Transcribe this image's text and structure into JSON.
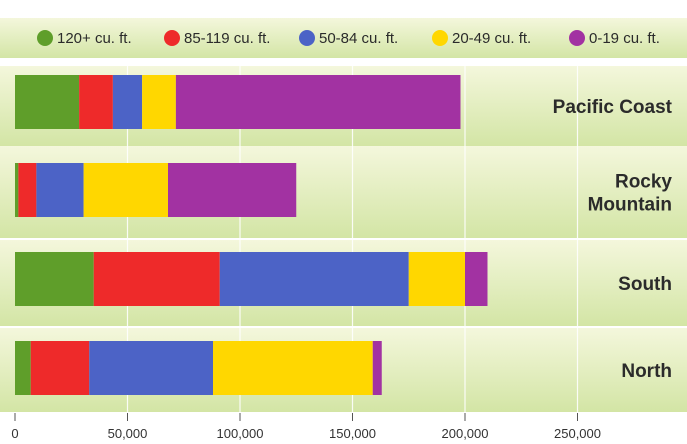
{
  "chart_data": {
    "type": "bar",
    "orientation": "horizontal",
    "stacked": true,
    "title": "",
    "xlabel": "",
    "ylabel": "",
    "xlim": [
      0,
      290000
    ],
    "x_ticks": [
      "0",
      "50,000",
      "100,000",
      "150,000",
      "200,000",
      "250,000"
    ],
    "x_tick_values": [
      0,
      50000,
      100000,
      150000,
      200000,
      250000
    ],
    "grid": true,
    "legend_position": "top",
    "categories": [
      "Pacific Coast",
      "Rocky Mountain",
      "South",
      "North"
    ],
    "category_labels": [
      [
        "Pacific Coast"
      ],
      [
        "Rocky",
        "Mountain"
      ],
      [
        "South"
      ],
      [
        "North"
      ]
    ],
    "series": [
      {
        "name": "120+ cu. ft.",
        "color": "#5f9e2a",
        "values": [
          28500,
          1500,
          35000,
          7000
        ]
      },
      {
        "name": "85-119 cu. ft.",
        "color": "#ee2a2a",
        "values": [
          15000,
          8000,
          56000,
          26000
        ]
      },
      {
        "name": "50-84 cu. ft.",
        "color": "#4c63c6",
        "values": [
          13000,
          21000,
          84000,
          55000
        ]
      },
      {
        "name": "20-49 cu. ft.",
        "color": "#ffd700",
        "values": [
          15000,
          37500,
          25000,
          71000
        ]
      },
      {
        "name": "0-19 cu. ft.",
        "color": "#a232a2",
        "values": [
          126500,
          57000,
          10000,
          4000
        ]
      }
    ]
  },
  "colors": {
    "panel_light": "#f4f7dc",
    "panel_dark": "#d3e5a5",
    "gridline": "#ffffff",
    "text": "#2b2b2b"
  }
}
